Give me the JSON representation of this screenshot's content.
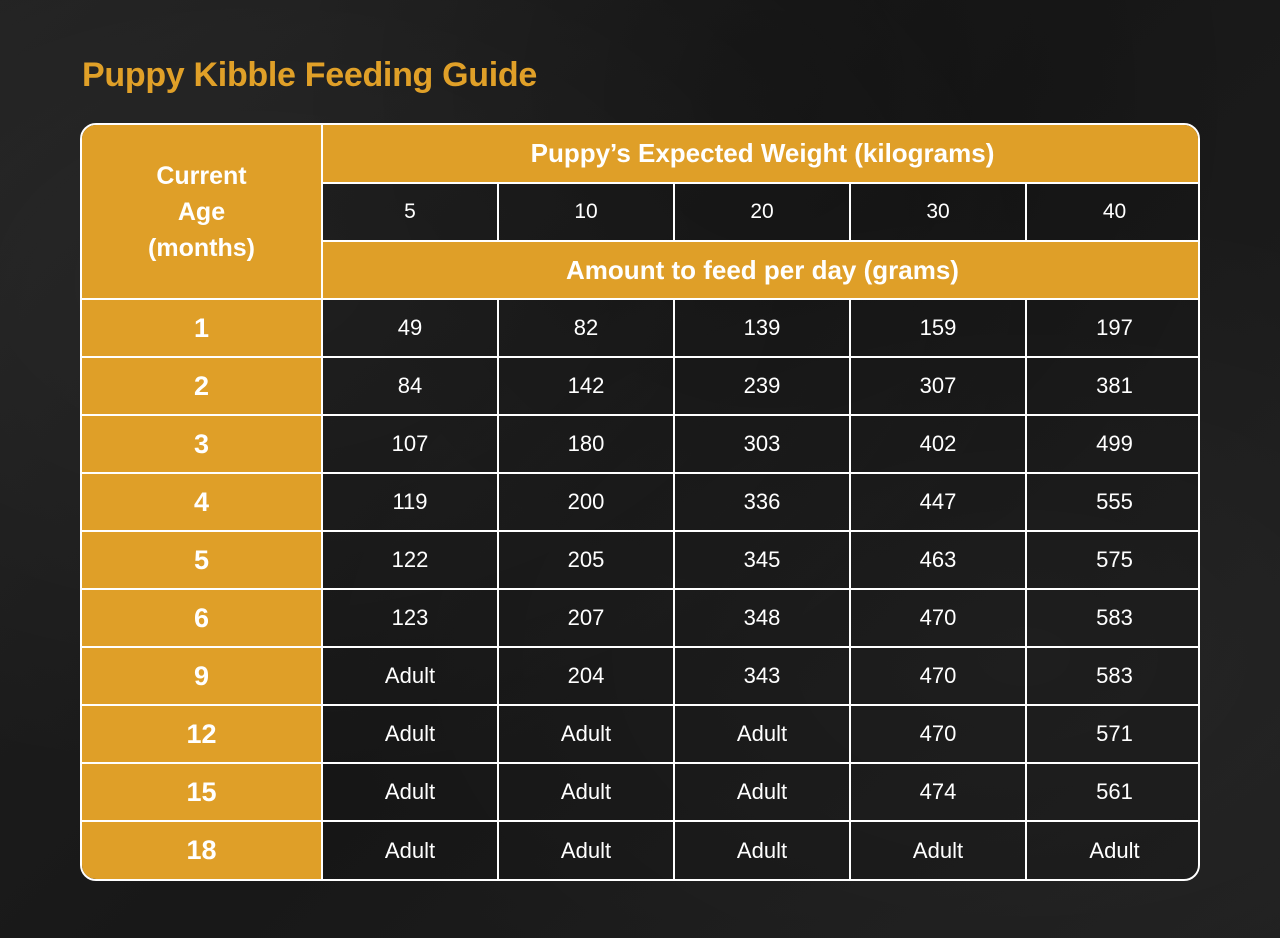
{
  "title": "Puppy Kibble Feeding Guide",
  "colors": {
    "accent": "#df9f28",
    "background": "#1c1c1c",
    "text": "#ffffff"
  },
  "table": {
    "corner_header": [
      "Current",
      "Age",
      "(months)"
    ],
    "weight_header": "Puppy’s Expected Weight (kilograms)",
    "weights": [
      "5",
      "10",
      "20",
      "30",
      "40"
    ],
    "amount_header": "Amount to feed per day (grams)",
    "rows": [
      {
        "age": "1",
        "values": [
          "49",
          "82",
          "139",
          "159",
          "197"
        ]
      },
      {
        "age": "2",
        "values": [
          "84",
          "142",
          "239",
          "307",
          "381"
        ]
      },
      {
        "age": "3",
        "values": [
          "107",
          "180",
          "303",
          "402",
          "499"
        ]
      },
      {
        "age": "4",
        "values": [
          "119",
          "200",
          "336",
          "447",
          "555"
        ]
      },
      {
        "age": "5",
        "values": [
          "122",
          "205",
          "345",
          "463",
          "575"
        ]
      },
      {
        "age": "6",
        "values": [
          "123",
          "207",
          "348",
          "470",
          "583"
        ]
      },
      {
        "age": "9",
        "values": [
          "Adult",
          "204",
          "343",
          "470",
          "583"
        ]
      },
      {
        "age": "12",
        "values": [
          "Adult",
          "Adult",
          "Adult",
          "470",
          "571"
        ]
      },
      {
        "age": "15",
        "values": [
          "Adult",
          "Adult",
          "Adult",
          "474",
          "561"
        ]
      },
      {
        "age": "18",
        "values": [
          "Adult",
          "Adult",
          "Adult",
          "Adult",
          "Adult"
        ]
      }
    ]
  }
}
